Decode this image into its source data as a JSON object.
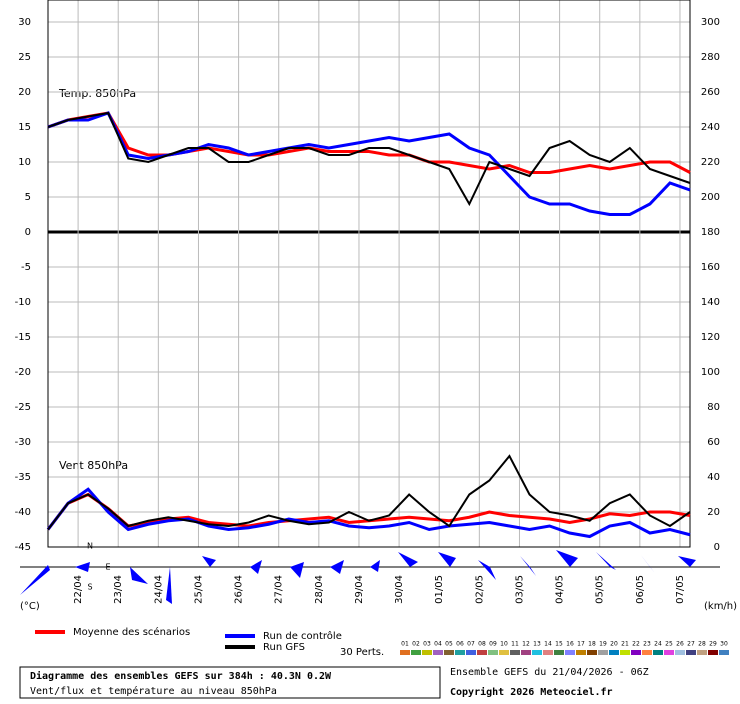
{
  "chart_data": {
    "type": "line",
    "panel_labels": [
      "Temp. 850hPa",
      "Vent 850hPa"
    ],
    "y_unit": "(°C)",
    "y2_unit": "(km/h)",
    "x": [
      0,
      12,
      24,
      36,
      48,
      60,
      72,
      84,
      96,
      108,
      120,
      132,
      144,
      156,
      168,
      180,
      192,
      204,
      216,
      228,
      240,
      252,
      264,
      276,
      288,
      300,
      312,
      324,
      336,
      348,
      360,
      372,
      384
    ],
    "xlim": [
      0,
      384
    ],
    "xticks": [
      {
        "value": 18,
        "label": "22/04"
      },
      {
        "value": 42,
        "label": "23/04"
      },
      {
        "value": 66,
        "label": "24/04"
      },
      {
        "value": 90,
        "label": "25/04"
      },
      {
        "value": 114,
        "label": "26/04"
      },
      {
        "value": 138,
        "label": "27/04"
      },
      {
        "value": 162,
        "label": "28/04"
      },
      {
        "value": 186,
        "label": "29/04"
      },
      {
        "value": 210,
        "label": "30/04"
      },
      {
        "value": 234,
        "label": "01/05"
      },
      {
        "value": 258,
        "label": "02/05"
      },
      {
        "value": 282,
        "label": "03/05"
      },
      {
        "value": 306,
        "label": "04/05"
      },
      {
        "value": 330,
        "label": "05/05"
      },
      {
        "value": 354,
        "label": "06/05"
      },
      {
        "value": 378,
        "label": "07/05"
      }
    ],
    "ylim": [
      -45,
      30
    ],
    "yticks": [
      -45,
      -40,
      -35,
      -30,
      -25,
      -20,
      -15,
      -10,
      -5,
      0,
      5,
      10,
      15,
      20,
      25,
      30
    ],
    "y2lim": [
      0,
      300
    ],
    "y2ticks": [
      0,
      20,
      40,
      60,
      80,
      100,
      120,
      140,
      160,
      180,
      200,
      220,
      240,
      260,
      280,
      300
    ],
    "grid": true,
    "compass": [
      "N",
      "E",
      "S"
    ],
    "series": [
      {
        "name": "Moyenne des scénarios",
        "color": "#ff0000",
        "values": [
          15,
          16,
          16.5,
          17,
          12,
          11,
          11,
          11.5,
          12,
          11.5,
          11,
          11,
          11.5,
          12,
          11.5,
          11.5,
          11.5,
          11,
          11,
          10,
          10,
          9.5,
          9,
          9.5,
          8.5,
          8.5,
          9,
          9.5,
          9,
          9.5,
          10,
          10,
          8.5
        ]
      },
      {
        "name": "Run de contrôle",
        "color": "#0000ff",
        "values": [
          15,
          16,
          16,
          17,
          11,
          10.5,
          11,
          11.5,
          12.5,
          12,
          11,
          11.5,
          12,
          12.5,
          12,
          12.5,
          13,
          13.5,
          13,
          13.5,
          14,
          12,
          11,
          8,
          5,
          4,
          4,
          3,
          2.5,
          2.5,
          4,
          7,
          6
        ]
      },
      {
        "name": "Run GFS",
        "color": "#000000",
        "values": [
          15,
          16,
          16.5,
          17,
          10.5,
          10,
          11,
          12,
          12,
          10,
          10,
          11,
          12,
          12,
          11,
          11,
          12,
          12,
          11,
          10,
          9,
          4,
          10,
          9,
          8,
          12,
          13,
          11,
          10,
          12,
          9,
          8,
          7
        ]
      },
      {
        "name": "Moyenne des scénarios",
        "color": "#ff0000",
        "axis": "y2",
        "values": [
          10,
          25,
          30,
          22,
          12,
          14,
          16,
          17,
          14,
          13,
          12,
          14,
          15,
          16,
          17,
          14,
          15,
          16,
          17,
          16,
          15,
          17,
          20,
          18,
          17,
          16,
          14,
          16,
          19,
          18,
          20,
          20,
          18
        ]
      },
      {
        "name": "Run de contrôle",
        "color": "#0000ff",
        "axis": "y2",
        "values": [
          10,
          25,
          33,
          20,
          10,
          13,
          15,
          16,
          12,
          10,
          11,
          13,
          16,
          14,
          15,
          12,
          11,
          12,
          14,
          10,
          12,
          13,
          14,
          12,
          10,
          12,
          8,
          6,
          12,
          14,
          8,
          10,
          7
        ]
      },
      {
        "name": "Run GFS",
        "color": "#000000",
        "axis": "y2",
        "values": [
          10,
          25,
          30,
          22,
          12,
          15,
          17,
          15,
          13,
          12,
          14,
          18,
          15,
          13,
          14,
          20,
          15,
          18,
          30,
          20,
          12,
          30,
          38,
          52,
          30,
          20,
          18,
          15,
          25,
          30,
          18,
          12,
          20
        ]
      }
    ],
    "perturbations": {
      "label": "30 Perts.",
      "names": [
        "01",
        "02",
        "03",
        "04",
        "05",
        "06",
        "07",
        "08",
        "09",
        "10",
        "11",
        "12",
        "13",
        "14",
        "15",
        "16",
        "17",
        "18",
        "19",
        "20",
        "21",
        "22",
        "23",
        "24",
        "25",
        "26",
        "27",
        "28",
        "29",
        "30"
      ],
      "colors": [
        "#e07020",
        "#40a040",
        "#c0c000",
        "#a060c0",
        "#806030",
        "#20a0a0",
        "#4060e0",
        "#c04040",
        "#80c080",
        "#e0c040",
        "#606060",
        "#a04080",
        "#20c0e0",
        "#e08080",
        "#408040",
        "#8080ff",
        "#c08000",
        "#804000",
        "#a0a0a0",
        "#0080c0",
        "#c0e000",
        "#8000c0",
        "#ff8040",
        "#008080",
        "#e040e0",
        "#a0c0e0",
        "#404080",
        "#c0a080",
        "#800000",
        "#4080c0"
      ]
    },
    "title_box": [
      "Diagramme des ensembles GEFS sur 384h : 40.3N 0.2W",
      "Vent/flux et température au niveau 850hPa"
    ],
    "run_info": "Ensemble GEFS du 21/04/2026 - 06Z",
    "copyright": "Copyright 2026 Meteociel.fr"
  }
}
